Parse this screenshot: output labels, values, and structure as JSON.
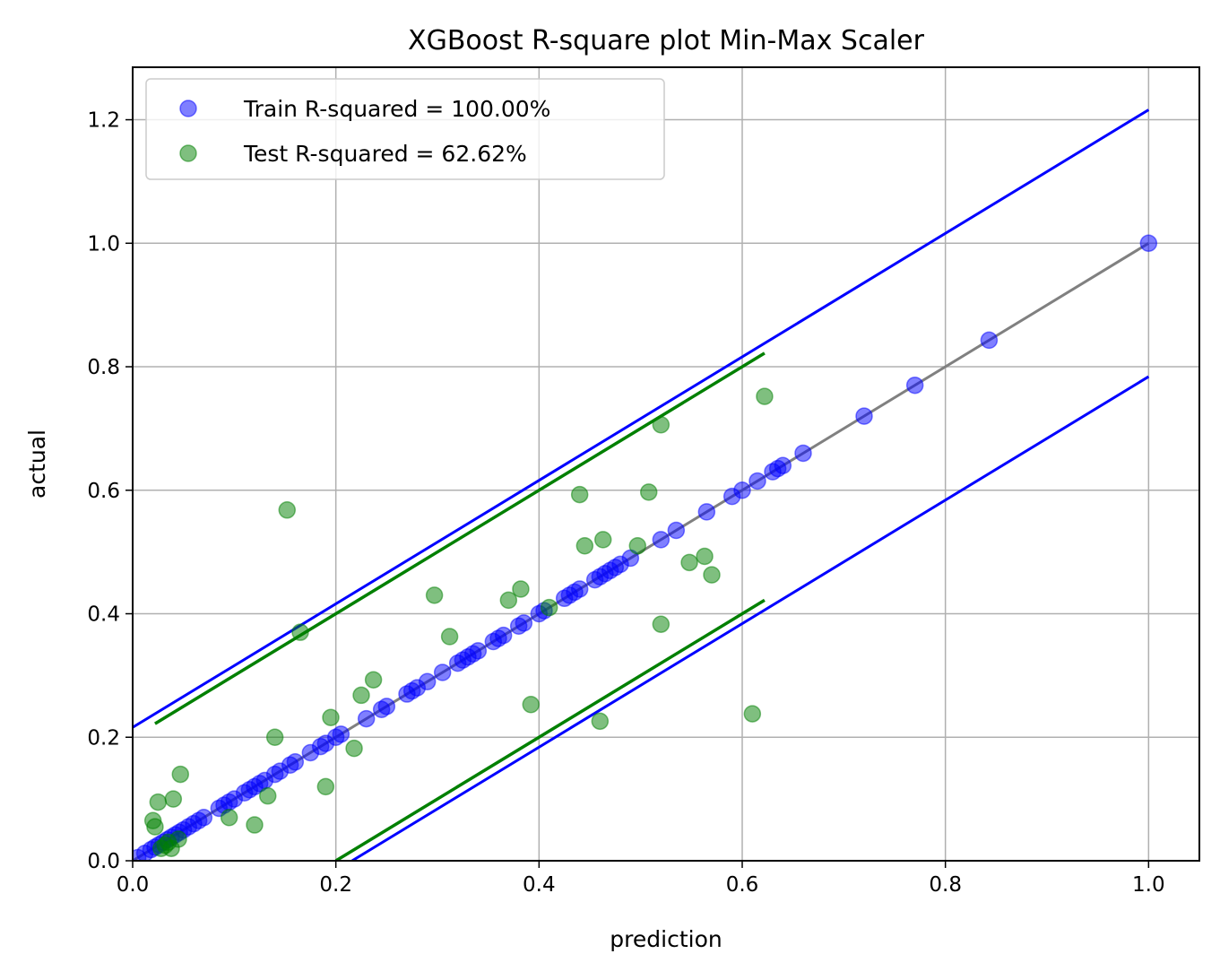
{
  "chart_data": {
    "type": "scatter",
    "title": "XGBoost R-square plot Min-Max Scaler",
    "xlabel": "prediction",
    "ylabel": "actual",
    "xlim": [
      0.0,
      1.05
    ],
    "ylim": [
      0.0,
      1.285
    ],
    "x_ticks": [
      "0.0",
      "0.2",
      "0.4",
      "0.6",
      "0.8",
      "1.0"
    ],
    "y_ticks": [
      "0.0",
      "0.2",
      "0.4",
      "0.6",
      "0.8",
      "1.0",
      "1.2"
    ],
    "grid": true,
    "legend_position": "top-left",
    "colors": {
      "train": "#0000ff",
      "test": "#008000",
      "identity": "#808080",
      "train_band": "#0000ff",
      "test_band": "#008000"
    },
    "series": [
      {
        "name": "Train R-squared = 100.00%",
        "kind": "points",
        "color": "#0000ff",
        "points": [
          [
            0.005,
            0.005
          ],
          [
            0.012,
            0.012
          ],
          [
            0.018,
            0.018
          ],
          [
            0.022,
            0.022
          ],
          [
            0.026,
            0.026
          ],
          [
            0.03,
            0.03
          ],
          [
            0.034,
            0.034
          ],
          [
            0.038,
            0.038
          ],
          [
            0.042,
            0.042
          ],
          [
            0.046,
            0.046
          ],
          [
            0.05,
            0.05
          ],
          [
            0.055,
            0.055
          ],
          [
            0.06,
            0.06
          ],
          [
            0.065,
            0.065
          ],
          [
            0.07,
            0.07
          ],
          [
            0.085,
            0.085
          ],
          [
            0.09,
            0.09
          ],
          [
            0.095,
            0.095
          ],
          [
            0.1,
            0.1
          ],
          [
            0.11,
            0.11
          ],
          [
            0.115,
            0.115
          ],
          [
            0.12,
            0.12
          ],
          [
            0.125,
            0.125
          ],
          [
            0.13,
            0.13
          ],
          [
            0.14,
            0.14
          ],
          [
            0.145,
            0.145
          ],
          [
            0.155,
            0.155
          ],
          [
            0.16,
            0.16
          ],
          [
            0.175,
            0.175
          ],
          [
            0.185,
            0.185
          ],
          [
            0.19,
            0.19
          ],
          [
            0.2,
            0.2
          ],
          [
            0.205,
            0.205
          ],
          [
            0.23,
            0.23
          ],
          [
            0.245,
            0.245
          ],
          [
            0.25,
            0.25
          ],
          [
            0.27,
            0.27
          ],
          [
            0.275,
            0.275
          ],
          [
            0.28,
            0.28
          ],
          [
            0.29,
            0.29
          ],
          [
            0.305,
            0.305
          ],
          [
            0.32,
            0.32
          ],
          [
            0.325,
            0.325
          ],
          [
            0.33,
            0.33
          ],
          [
            0.335,
            0.335
          ],
          [
            0.34,
            0.34
          ],
          [
            0.355,
            0.355
          ],
          [
            0.36,
            0.36
          ],
          [
            0.365,
            0.365
          ],
          [
            0.38,
            0.38
          ],
          [
            0.385,
            0.385
          ],
          [
            0.4,
            0.4
          ],
          [
            0.405,
            0.405
          ],
          [
            0.425,
            0.425
          ],
          [
            0.43,
            0.43
          ],
          [
            0.435,
            0.435
          ],
          [
            0.44,
            0.44
          ],
          [
            0.455,
            0.455
          ],
          [
            0.46,
            0.46
          ],
          [
            0.465,
            0.465
          ],
          [
            0.47,
            0.47
          ],
          [
            0.475,
            0.475
          ],
          [
            0.48,
            0.48
          ],
          [
            0.49,
            0.49
          ],
          [
            0.52,
            0.52
          ],
          [
            0.535,
            0.535
          ],
          [
            0.565,
            0.565
          ],
          [
            0.59,
            0.59
          ],
          [
            0.6,
            0.6
          ],
          [
            0.615,
            0.615
          ],
          [
            0.63,
            0.63
          ],
          [
            0.635,
            0.635
          ],
          [
            0.64,
            0.64
          ],
          [
            0.66,
            0.66
          ],
          [
            0.72,
            0.72
          ],
          [
            0.77,
            0.77
          ],
          [
            0.843,
            0.843
          ],
          [
            1.0,
            1.0
          ]
        ]
      },
      {
        "name": "Test R-squared = 62.62%",
        "kind": "points",
        "color": "#008000",
        "points": [
          [
            0.02,
            0.065
          ],
          [
            0.022,
            0.055
          ],
          [
            0.025,
            0.095
          ],
          [
            0.028,
            0.02
          ],
          [
            0.032,
            0.025
          ],
          [
            0.035,
            0.03
          ],
          [
            0.038,
            0.02
          ],
          [
            0.04,
            0.1
          ],
          [
            0.045,
            0.035
          ],
          [
            0.047,
            0.14
          ],
          [
            0.095,
            0.07
          ],
          [
            0.12,
            0.058
          ],
          [
            0.133,
            0.105
          ],
          [
            0.14,
            0.2
          ],
          [
            0.152,
            0.568
          ],
          [
            0.165,
            0.37
          ],
          [
            0.19,
            0.12
          ],
          [
            0.195,
            0.232
          ],
          [
            0.218,
            0.182
          ],
          [
            0.225,
            0.268
          ],
          [
            0.237,
            0.293
          ],
          [
            0.297,
            0.43
          ],
          [
            0.312,
            0.363
          ],
          [
            0.37,
            0.422
          ],
          [
            0.382,
            0.44
          ],
          [
            0.392,
            0.253
          ],
          [
            0.41,
            0.41
          ],
          [
            0.44,
            0.593
          ],
          [
            0.445,
            0.51
          ],
          [
            0.46,
            0.226
          ],
          [
            0.463,
            0.52
          ],
          [
            0.497,
            0.51
          ],
          [
            0.508,
            0.597
          ],
          [
            0.52,
            0.706
          ],
          [
            0.52,
            0.383
          ],
          [
            0.548,
            0.483
          ],
          [
            0.563,
            0.493
          ],
          [
            0.57,
            0.463
          ],
          [
            0.61,
            0.238
          ],
          [
            0.622,
            0.752
          ]
        ]
      },
      {
        "kind": "line",
        "role": "identity",
        "color": "#808080",
        "points": [
          [
            0.0,
            0.0
          ],
          [
            1.0,
            1.0
          ]
        ]
      },
      {
        "kind": "line",
        "role": "train-upper",
        "color": "#0000ff",
        "points": [
          [
            0.0,
            0.216
          ],
          [
            1.0,
            1.216
          ]
        ]
      },
      {
        "kind": "line",
        "role": "train-lower",
        "color": "#0000ff",
        "points": [
          [
            0.216,
            0.0
          ],
          [
            1.0,
            0.784
          ]
        ]
      },
      {
        "kind": "line",
        "role": "test-upper",
        "color": "#008000",
        "points": [
          [
            0.022,
            0.222
          ],
          [
            0.622,
            0.822
          ]
        ]
      },
      {
        "kind": "line",
        "role": "test-lower",
        "color": "#008000",
        "points": [
          [
            0.2,
            0.0
          ],
          [
            0.622,
            0.422
          ]
        ]
      }
    ]
  }
}
